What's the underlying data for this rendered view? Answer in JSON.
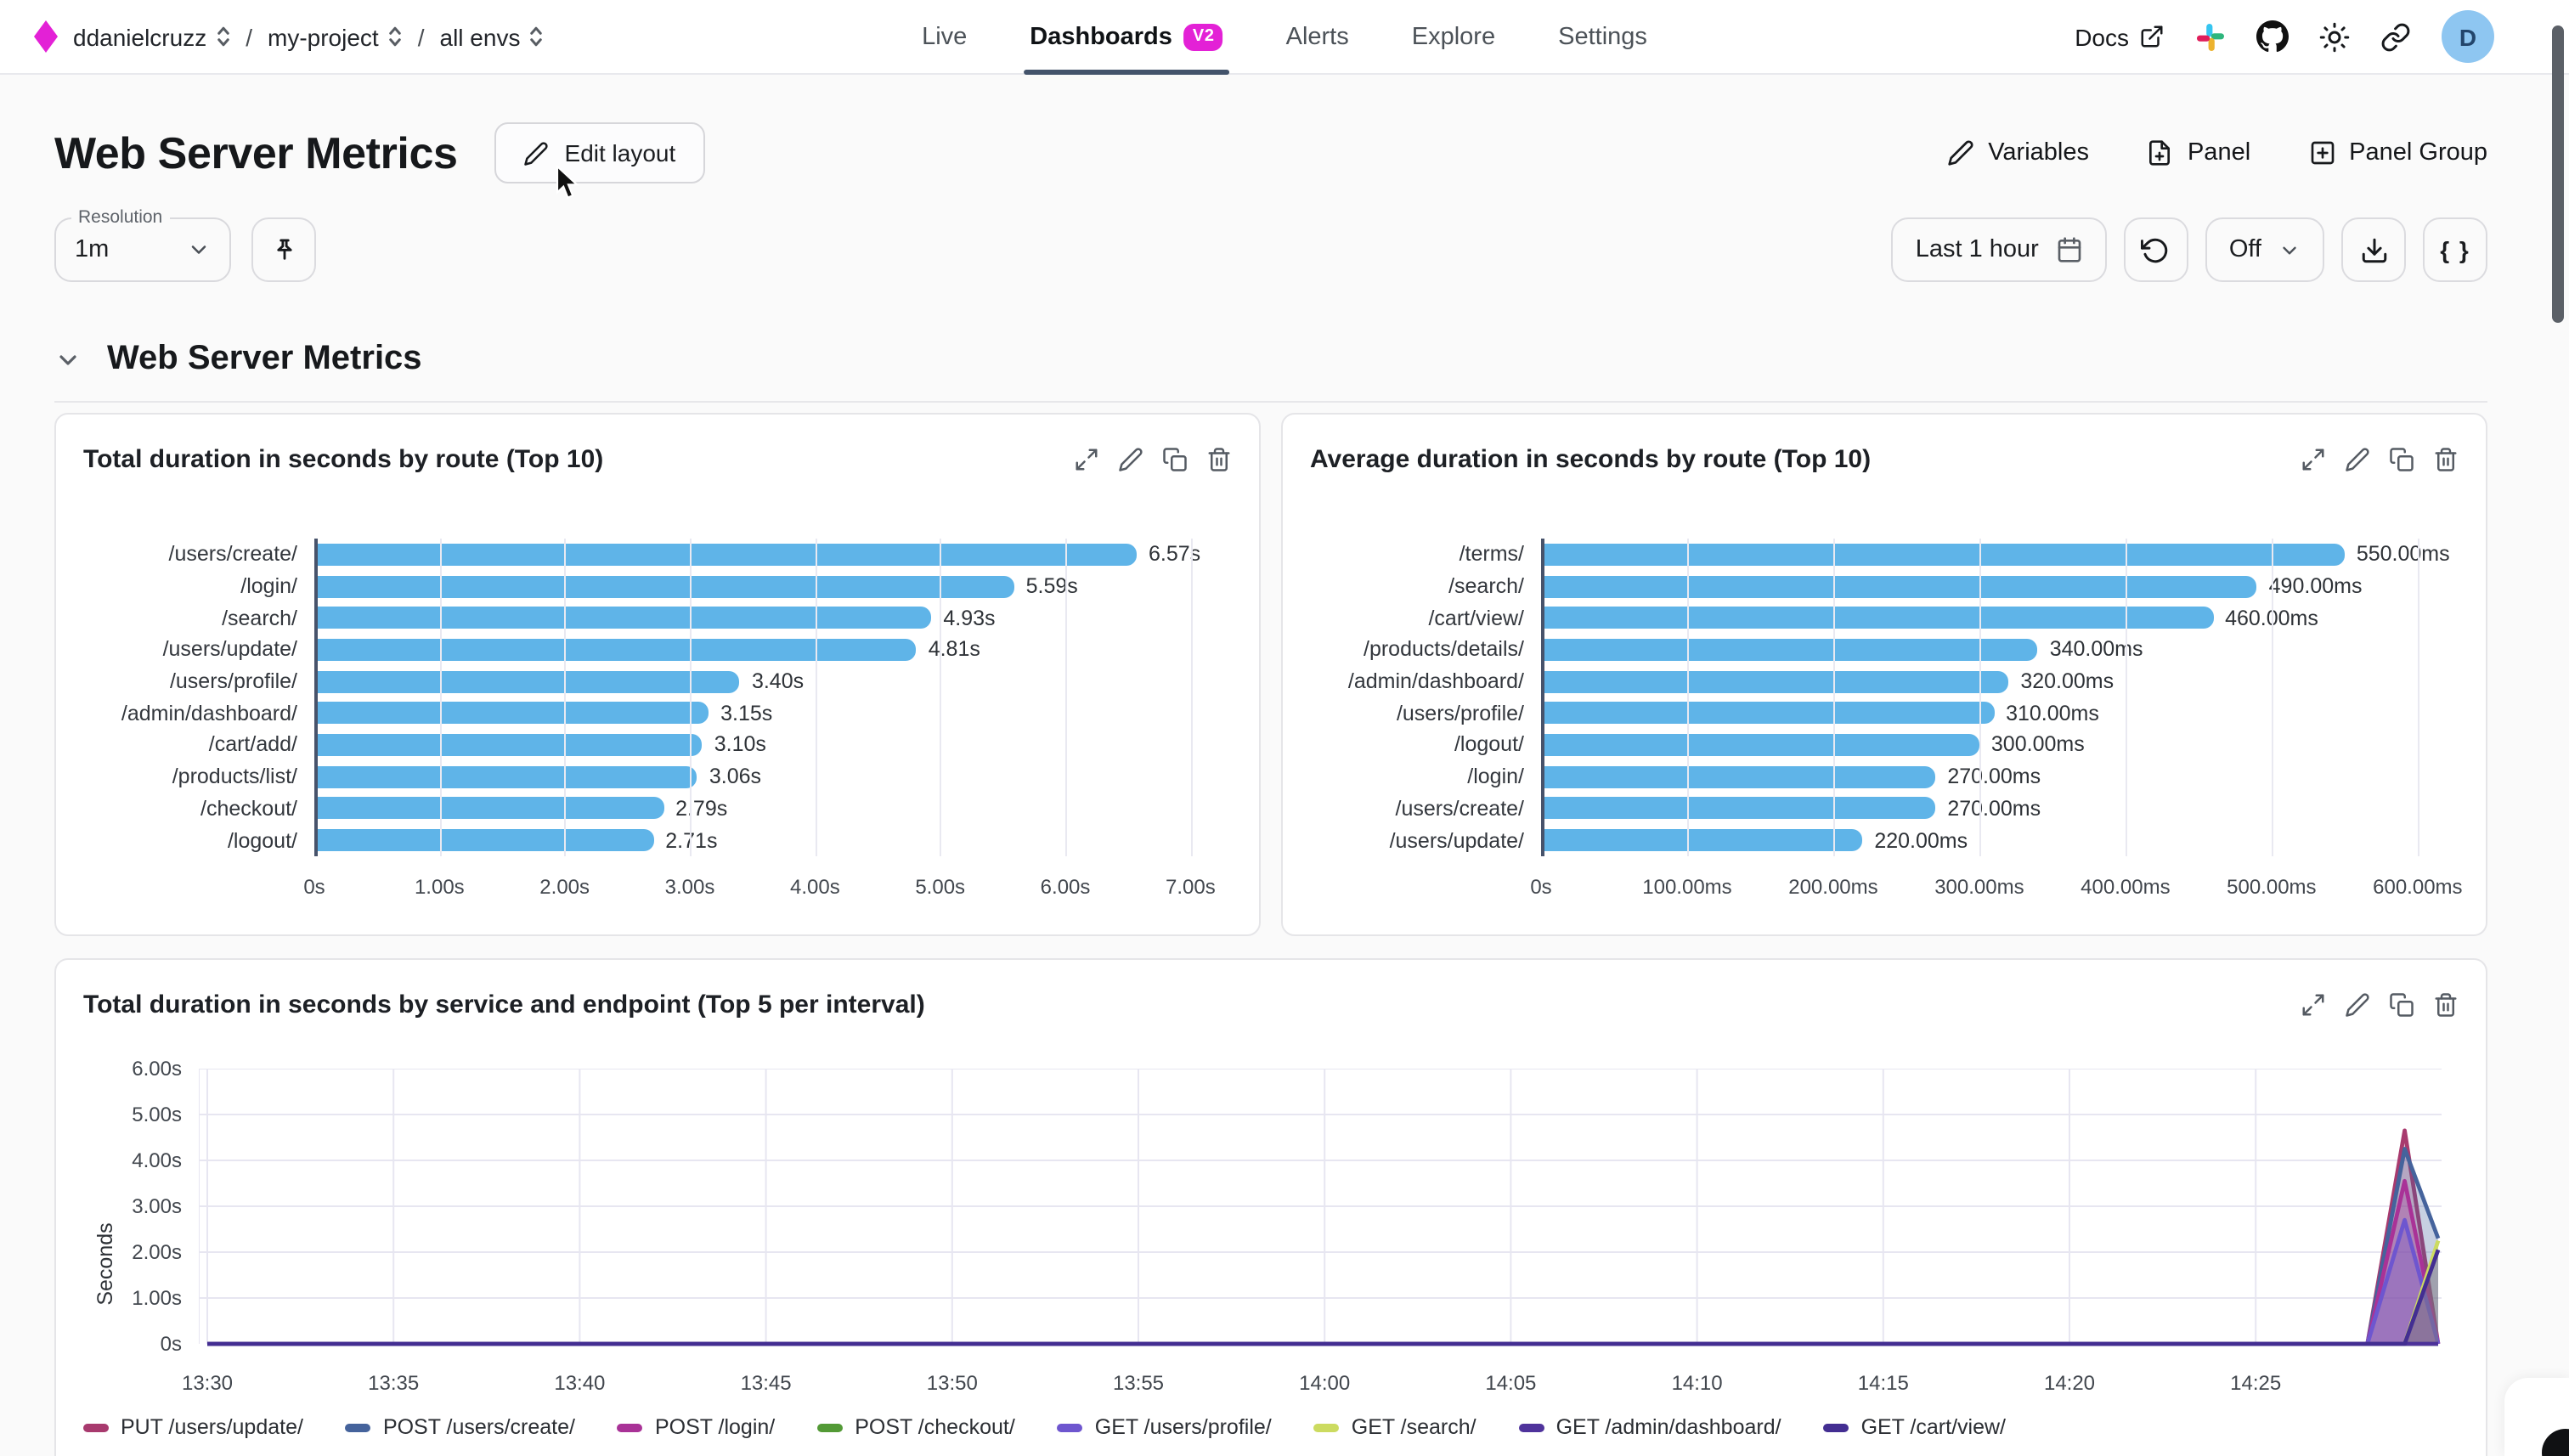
{
  "nav": {
    "breadcrumb": {
      "org": "ddanielcruzz",
      "project": "my-project",
      "env": "all envs",
      "separator": "/"
    },
    "tabs": [
      {
        "label": "Live",
        "active": false
      },
      {
        "label": "Dashboards",
        "active": true,
        "badge": "V2"
      },
      {
        "label": "Alerts",
        "active": false
      },
      {
        "label": "Explore",
        "active": false
      },
      {
        "label": "Settings",
        "active": false
      }
    ],
    "docs_label": "Docs",
    "avatar_initial": "D"
  },
  "header": {
    "title": "Web Server Metrics",
    "edit_layout_label": "Edit layout",
    "variables_label": "Variables",
    "panel_label": "Panel",
    "panel_group_label": "Panel Group"
  },
  "controls": {
    "resolution_label": "Resolution",
    "resolution_value": "1m",
    "time_range_label": "Last 1 hour",
    "refresh_mode_label": "Off",
    "braces_label": "{ }"
  },
  "section": {
    "title": "Web Server Metrics"
  },
  "colors": {
    "brand": "#e321d6",
    "bar": "#5fb4e8",
    "axis": "#47536b",
    "grid": "#e9e9f1",
    "avatar_bg": "#8ec6f1"
  },
  "chart_data": [
    {
      "type": "bar",
      "orientation": "horizontal",
      "title": "Total duration in seconds by route (Top 10)",
      "categories": [
        "/users/create/",
        "/login/",
        "/search/",
        "/users/update/",
        "/users/profile/",
        "/admin/dashboard/",
        "/cart/add/",
        "/products/list/",
        "/checkout/",
        "/logout/"
      ],
      "values": [
        6.57,
        5.59,
        4.93,
        4.81,
        3.4,
        3.15,
        3.1,
        3.06,
        2.79,
        2.71
      ],
      "value_labels": [
        "6.57s",
        "5.59s",
        "4.93s",
        "4.81s",
        "3.40s",
        "3.15s",
        "3.10s",
        "3.06s",
        "2.79s",
        "2.71s"
      ],
      "xlim": [
        0,
        7.33
      ],
      "xticks": [
        {
          "v": 0,
          "label": "0s"
        },
        {
          "v": 1,
          "label": "1.00s"
        },
        {
          "v": 2,
          "label": "2.00s"
        },
        {
          "v": 3,
          "label": "3.00s"
        },
        {
          "v": 4,
          "label": "4.00s"
        },
        {
          "v": 5,
          "label": "5.00s"
        },
        {
          "v": 6,
          "label": "6.00s"
        },
        {
          "v": 7,
          "label": "7.00s"
        }
      ],
      "grid": true
    },
    {
      "type": "bar",
      "orientation": "horizontal",
      "title": "Average duration in seconds by route (Top 10)",
      "categories": [
        "/terms/",
        "/search/",
        "/cart/view/",
        "/products/details/",
        "/admin/dashboard/",
        "/users/profile/",
        "/logout/",
        "/login/",
        "/users/create/",
        "/users/update/"
      ],
      "values": [
        550,
        490,
        460,
        340,
        320,
        310,
        300,
        270,
        270,
        220
      ],
      "value_labels": [
        "550.00ms",
        "490.00ms",
        "460.00ms",
        "340.00ms",
        "320.00ms",
        "310.00ms",
        "300.00ms",
        "270.00ms",
        "270.00ms",
        "220.00ms"
      ],
      "xlim": [
        0,
        628
      ],
      "xticks": [
        {
          "v": 0,
          "label": "0s"
        },
        {
          "v": 100,
          "label": "100.00ms"
        },
        {
          "v": 200,
          "label": "200.00ms"
        },
        {
          "v": 300,
          "label": "300.00ms"
        },
        {
          "v": 400,
          "label": "400.00ms"
        },
        {
          "v": 500,
          "label": "500.00ms"
        },
        {
          "v": 600,
          "label": "600.00ms"
        }
      ],
      "grid": true
    },
    {
      "type": "area",
      "title": "Total duration in seconds by service and endpoint (Top 5 per interval)",
      "ylabel": "Seconds",
      "ylim": [
        0,
        6
      ],
      "yticks": [
        {
          "v": 0,
          "label": "0s"
        },
        {
          "v": 1,
          "label": "1.00s"
        },
        {
          "v": 2,
          "label": "2.00s"
        },
        {
          "v": 3,
          "label": "3.00s"
        },
        {
          "v": 4,
          "label": "4.00s"
        },
        {
          "v": 5,
          "label": "5.00s"
        },
        {
          "v": 6,
          "label": "6.00s"
        }
      ],
      "xlim": [
        0,
        60
      ],
      "x_unit": "minutes after 13:30",
      "xticks": [
        {
          "v": 0,
          "label": "13:30"
        },
        {
          "v": 5,
          "label": "13:35"
        },
        {
          "v": 10,
          "label": "13:40"
        },
        {
          "v": 15,
          "label": "13:45"
        },
        {
          "v": 20,
          "label": "13:50"
        },
        {
          "v": 25,
          "label": "13:55"
        },
        {
          "v": 30,
          "label": "14:00"
        },
        {
          "v": 35,
          "label": "14:05"
        },
        {
          "v": 40,
          "label": "14:10"
        },
        {
          "v": 45,
          "label": "14:15"
        },
        {
          "v": 50,
          "label": "14:20"
        },
        {
          "v": 55,
          "label": "14:25"
        }
      ],
      "grid": true,
      "legend_position": "bottom",
      "series": [
        {
          "name": "PUT /users/update/",
          "color": "#a83a6e",
          "points": [
            [
              0,
              0
            ],
            [
              58,
              0
            ],
            [
              59,
              4.65
            ],
            [
              60,
              0
            ]
          ]
        },
        {
          "name": "POST /users/create/",
          "color": "#45639c",
          "points": [
            [
              0,
              0
            ],
            [
              58,
              0
            ],
            [
              59,
              4.25
            ],
            [
              60,
              2.3
            ]
          ]
        },
        {
          "name": "POST /login/",
          "color": "#a93297",
          "points": [
            [
              0,
              0
            ],
            [
              58,
              0
            ],
            [
              59,
              3.55
            ],
            [
              60,
              0
            ]
          ]
        },
        {
          "name": "POST /checkout/",
          "color": "#539a36",
          "points": [
            [
              0,
              0
            ],
            [
              60,
              0
            ]
          ]
        },
        {
          "name": "GET /users/profile/",
          "color": "#6e56cf",
          "points": [
            [
              0,
              0
            ],
            [
              58,
              0
            ],
            [
              59,
              2.7
            ],
            [
              60,
              0
            ]
          ]
        },
        {
          "name": "GET /search/",
          "color": "#ccdb60",
          "points": [
            [
              0,
              0
            ],
            [
              59,
              0
            ],
            [
              60,
              2.25
            ]
          ]
        },
        {
          "name": "GET /admin/dashboard/",
          "color": "#4f339c",
          "points": [
            [
              0,
              0
            ],
            [
              60,
              0
            ]
          ]
        },
        {
          "name": "GET /cart/view/",
          "color": "#432e92",
          "points": [
            [
              0,
              0
            ],
            [
              59,
              0
            ],
            [
              60,
              2.05
            ]
          ]
        }
      ]
    }
  ]
}
